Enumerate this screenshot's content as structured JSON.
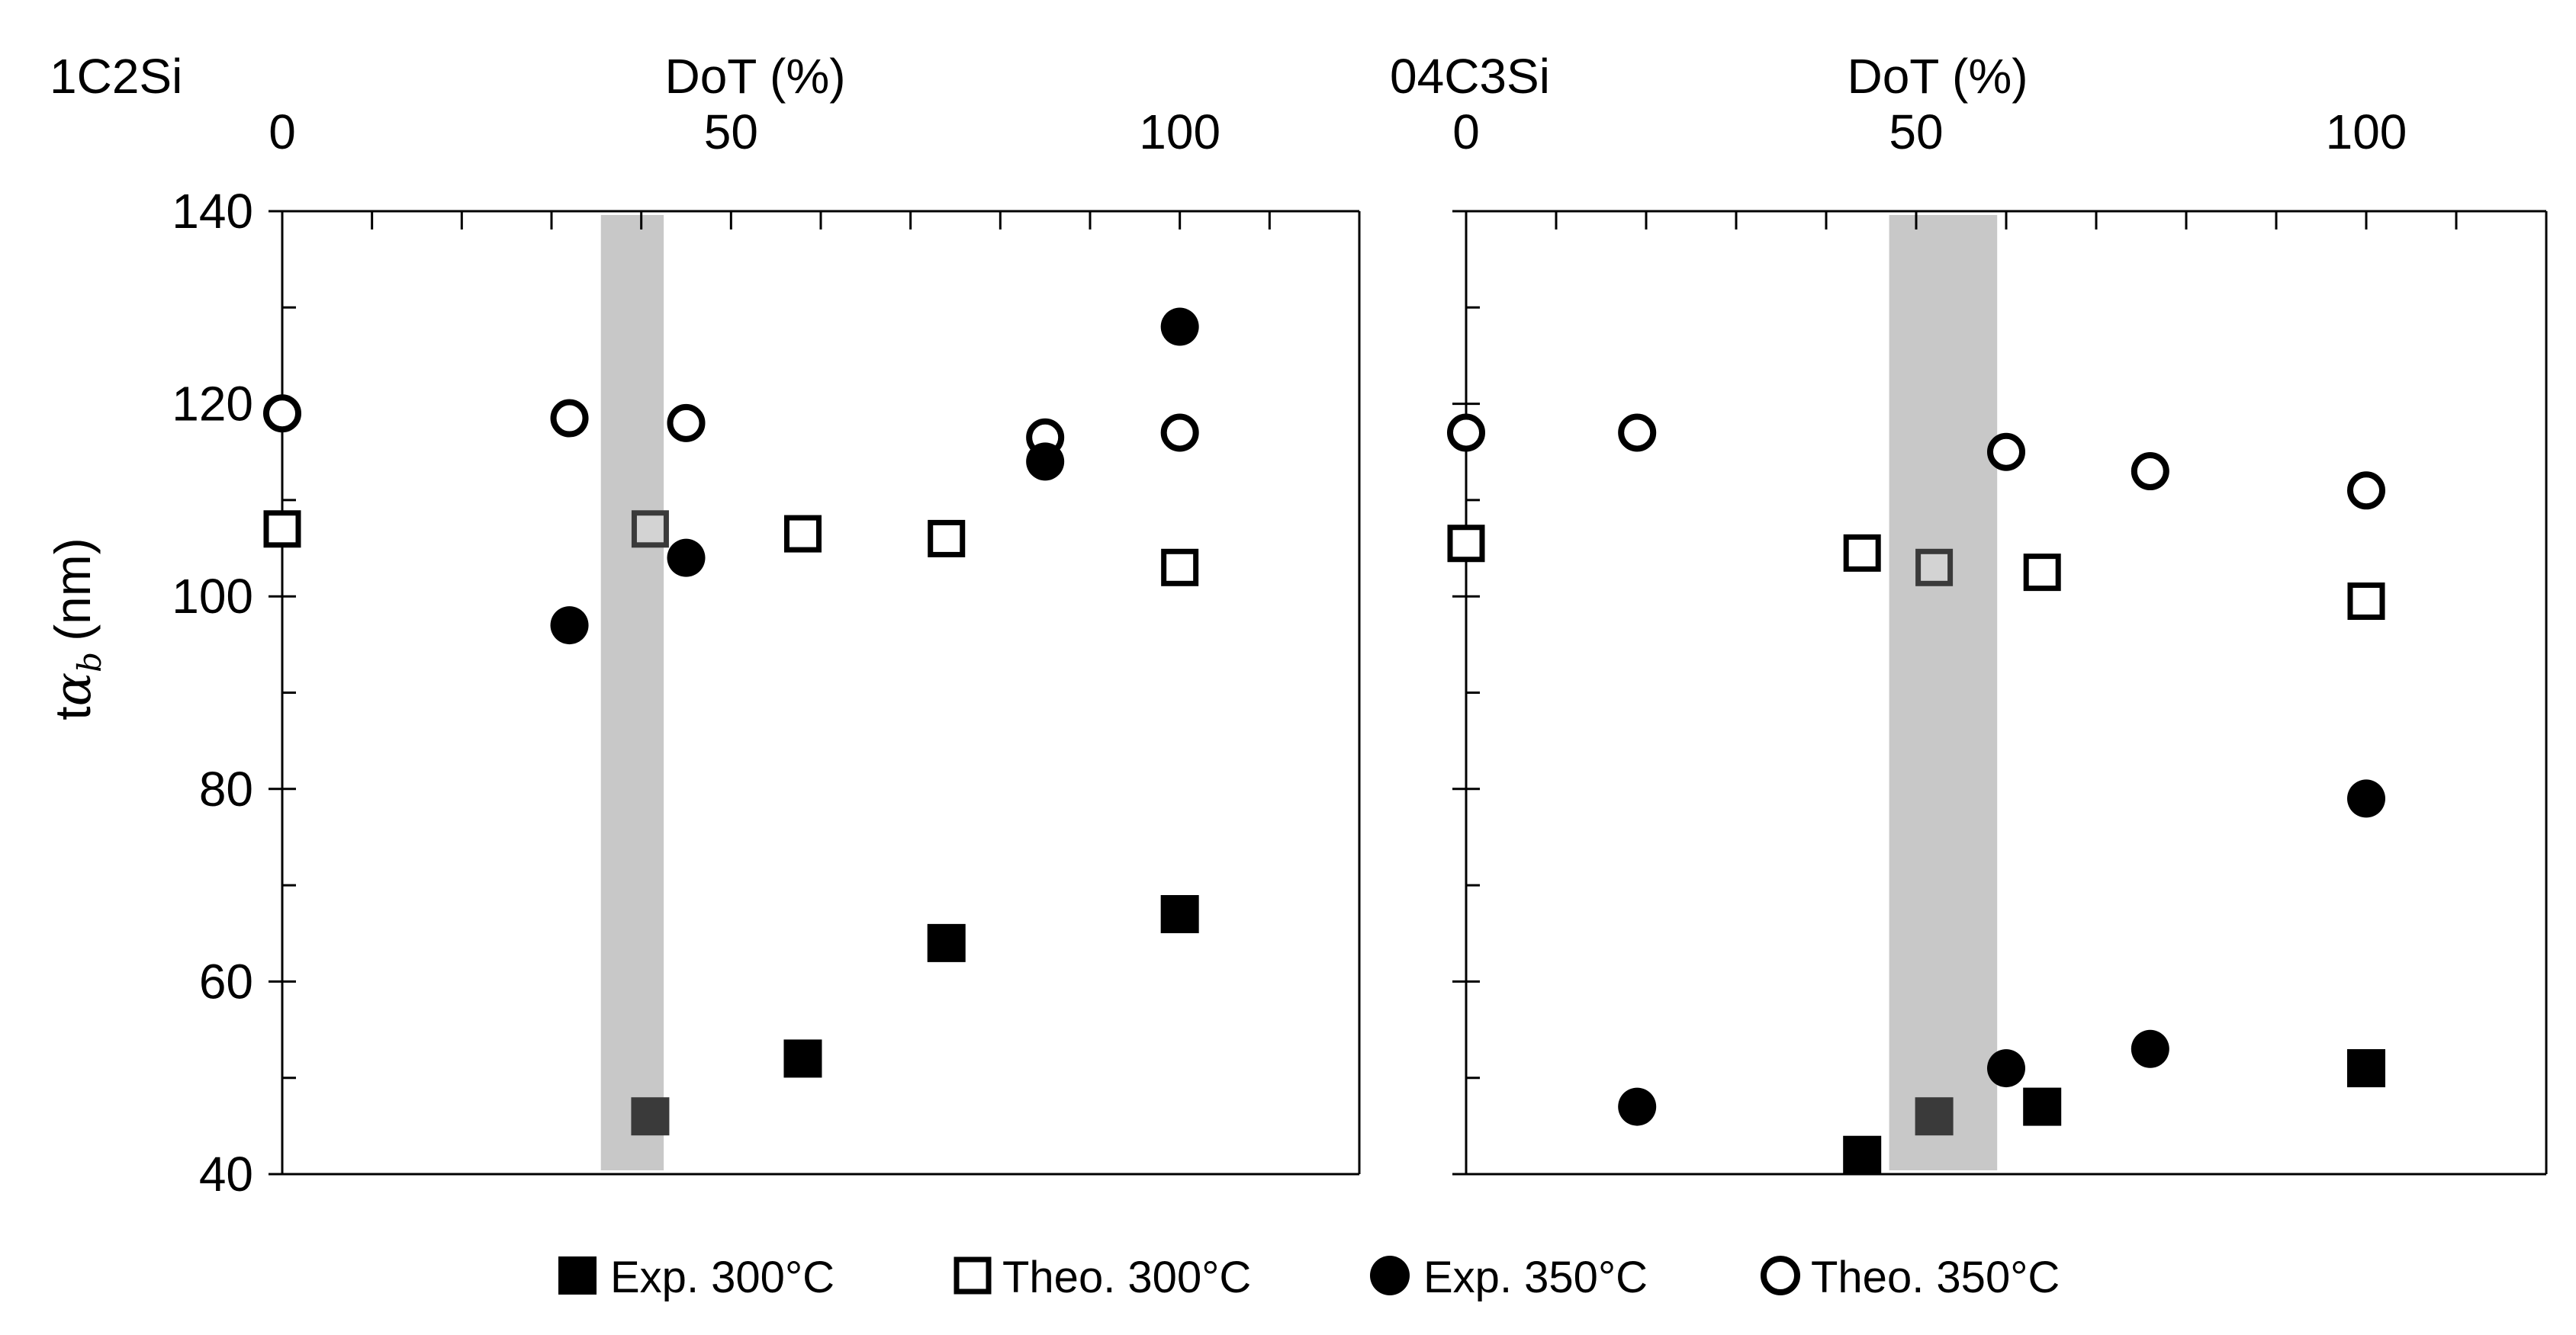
{
  "chart_data": [
    {
      "type": "scatter",
      "panel_label": "1C2Si",
      "xlabel": "DoT (%)",
      "ylabel_main": "t",
      "ylabel_symbol": "α",
      "ylabel_sub": "b",
      "ylabel_unit": "(nm)",
      "xlim": [
        0,
        120
      ],
      "ylim": [
        40,
        140
      ],
      "x_ticks": [
        0,
        50,
        100
      ],
      "y_ticks": [
        40,
        60,
        80,
        100,
        120,
        140
      ],
      "shaded_band": [
        35.5,
        42.5
      ],
      "series": [
        {
          "name": "Exp. 300°C",
          "marker": "filled-square",
          "x": [
            41,
            58,
            74,
            100
          ],
          "y": [
            46,
            52,
            64,
            67
          ]
        },
        {
          "name": "Theo. 300°C",
          "marker": "open-square",
          "x": [
            0,
            41,
            58,
            74,
            100
          ],
          "y": [
            107,
            107,
            106.5,
            106,
            103
          ]
        },
        {
          "name": "Exp. 350°C",
          "marker": "filled-circle",
          "x": [
            32,
            45,
            85,
            100
          ],
          "y": [
            97,
            104,
            114,
            128
          ]
        },
        {
          "name": "Theo. 350°C",
          "marker": "open-circle",
          "x": [
            0,
            32,
            45,
            85,
            100
          ],
          "y": [
            119,
            118.5,
            118,
            116.5,
            117
          ]
        }
      ]
    },
    {
      "type": "scatter",
      "panel_label": "04C3Si",
      "xlabel": "DoT (%)",
      "xlim": [
        0,
        120
      ],
      "ylim": [
        40,
        140
      ],
      "x_ticks": [
        0,
        50,
        100
      ],
      "y_ticks": [
        40,
        60,
        80,
        100,
        120,
        140
      ],
      "shaded_band": [
        47,
        59
      ],
      "series": [
        {
          "name": "Exp. 300°C",
          "marker": "filled-square",
          "x": [
            44,
            52,
            64,
            100
          ],
          "y": [
            42,
            46,
            47,
            51
          ]
        },
        {
          "name": "Theo. 300°C",
          "marker": "open-square",
          "x": [
            0,
            44,
            52,
            64,
            100
          ],
          "y": [
            105.5,
            104.5,
            103,
            102.5,
            99.5
          ]
        },
        {
          "name": "Exp. 350°C",
          "marker": "filled-circle",
          "x": [
            19,
            60,
            76,
            100
          ],
          "y": [
            47,
            51,
            53,
            79
          ]
        },
        {
          "name": "Theo. 350°C",
          "marker": "open-circle",
          "x": [
            0,
            19,
            60,
            76,
            100
          ],
          "y": [
            117,
            117,
            115,
            113,
            111
          ]
        }
      ]
    }
  ],
  "legend": {
    "position": "bottom",
    "items": [
      {
        "label": "Exp. 300°C",
        "marker": "filled-square"
      },
      {
        "label": "Theo. 300°C",
        "marker": "open-square"
      },
      {
        "label": "Exp. 350°C",
        "marker": "filled-circle"
      },
      {
        "label": "Theo. 350°C",
        "marker": "open-circle"
      }
    ]
  },
  "colors": {
    "marker": "#000000",
    "band": "#c8c8c8",
    "overlap_marker": "#3a3a3a",
    "axis": "#000000"
  }
}
